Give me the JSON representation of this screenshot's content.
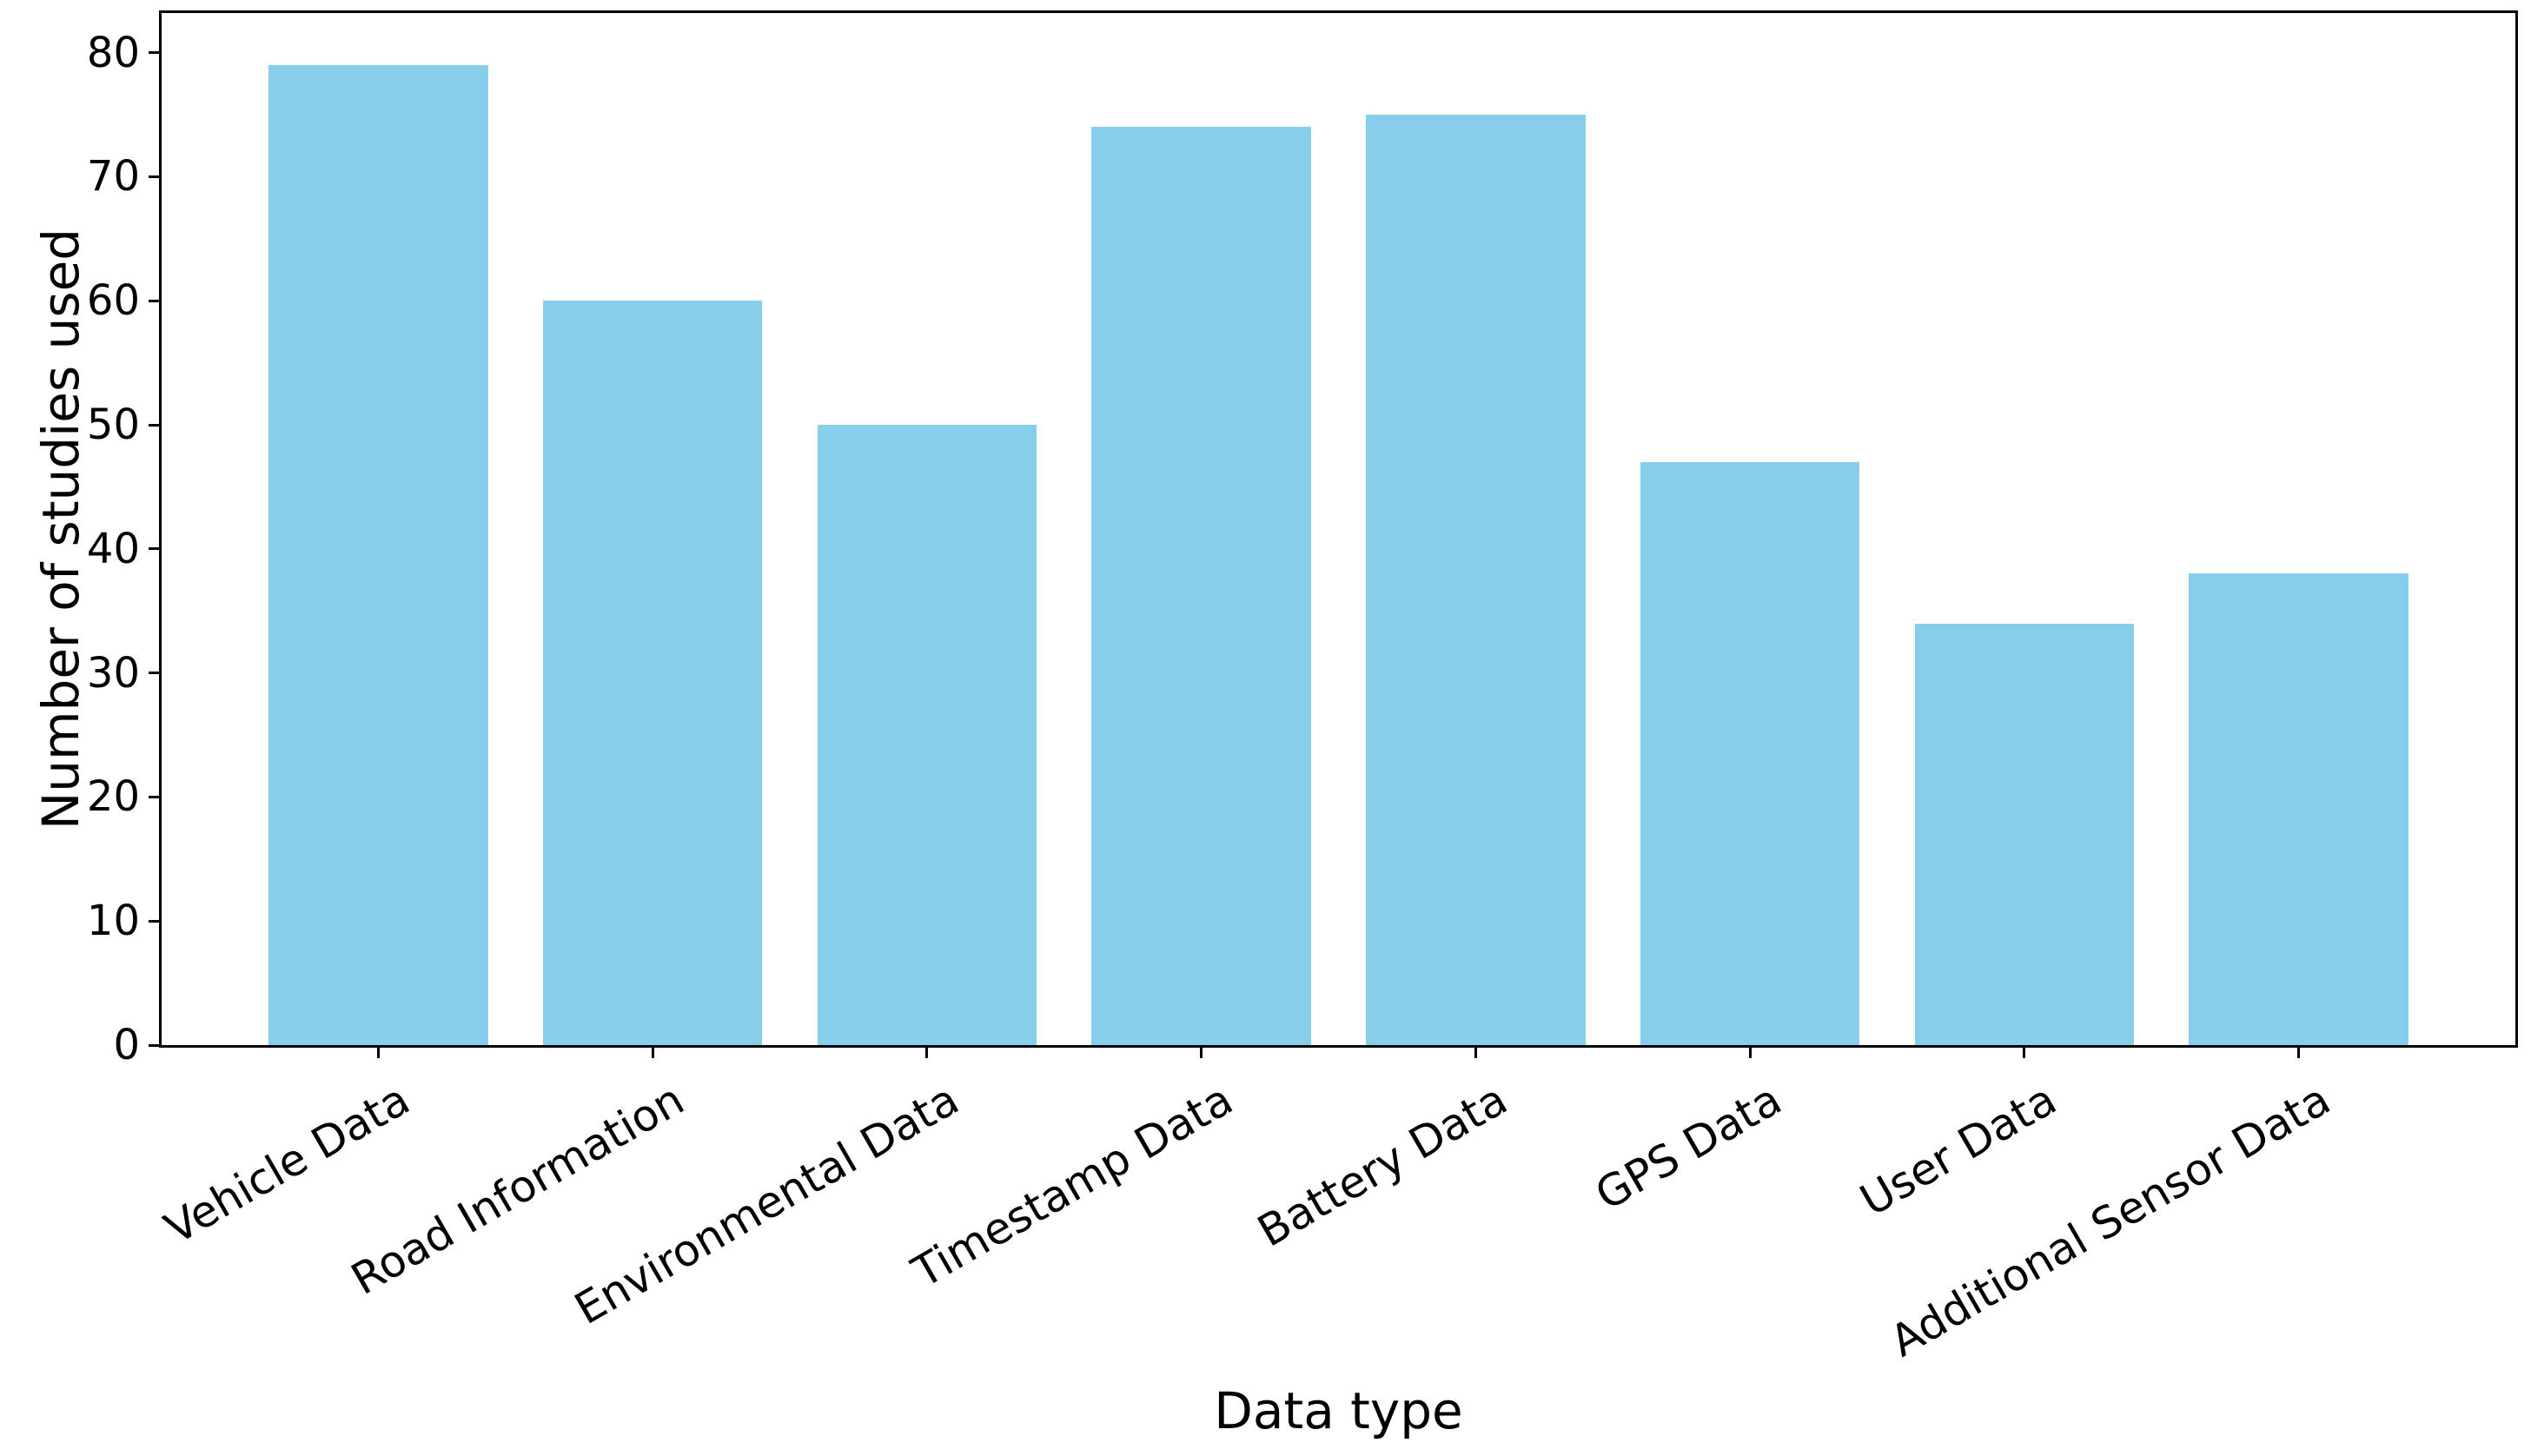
{
  "chart_data": {
    "type": "bar",
    "title": "",
    "xlabel": "Data type",
    "ylabel": "Number of studies used",
    "categories": [
      "Vehicle Data",
      "Road Information",
      "Environmental Data",
      "Timestamp Data",
      "Battery Data",
      "GPS Data",
      "User Data",
      "Additional Sensor Data"
    ],
    "values": [
      79,
      60,
      50,
      74,
      75,
      47,
      34,
      38
    ],
    "yticks": [
      0,
      10,
      20,
      30,
      40,
      50,
      60,
      70,
      80
    ],
    "ylim": [
      0,
      83.2
    ],
    "xlim": [
      -0.79,
      7.79
    ],
    "bar_width_units": 0.8,
    "bar_color": "#87CEEB",
    "axis_color": "#000000",
    "background_color": "#ffffff",
    "grid": false,
    "legend": false,
    "xtick_label_rotation_deg": 30
  }
}
